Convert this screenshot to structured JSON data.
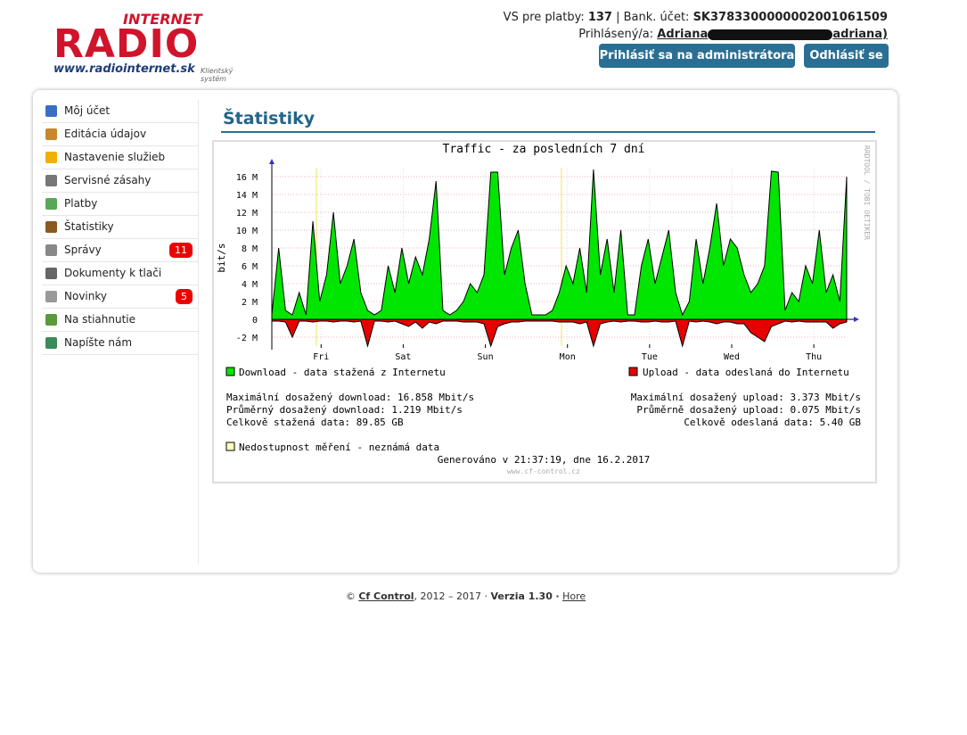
{
  "header": {
    "logo_top": "INTERNET",
    "logo_main": "RADIO",
    "logo_url": "www.radiointernet.sk",
    "logo_sub": "Klientský systém",
    "vs_label": "VS pre platby:",
    "vs": "137",
    "bank_label": "| Bank. účet:",
    "bank": "SK3783300000002001061509",
    "user_label": "Prihlásený/a:",
    "user_name": "Adriana",
    "user_tail": "adriana)",
    "buttons": [
      "Prihlásiť sa na administrátora",
      "Odhlásiť se"
    ]
  },
  "menu": [
    {
      "label": "Môj účet"
    },
    {
      "label": "Editácia údajov"
    },
    {
      "label": "Nastavenie služieb"
    },
    {
      "label": "Servisné zásahy"
    },
    {
      "label": "Platby"
    },
    {
      "label": "Štatistiky"
    },
    {
      "label": "Správy",
      "badge": "11"
    },
    {
      "label": "Dokumenty k tlači"
    },
    {
      "label": "Novinky",
      "badge": "5"
    },
    {
      "label": "Na stiahnutie"
    },
    {
      "label": "Napíšte nám"
    }
  ],
  "page_title": "Štatistiky",
  "chart_data": {
    "type": "area",
    "title": "Traffic - za posledních 7 dní",
    "y_label": "bit/s",
    "watermark": "RRDTOOL / TOBI OETIKER",
    "xlim": [
      0,
      168
    ],
    "ylim": [
      -3,
      17
    ],
    "xticks": [
      {
        "value": 14.4,
        "label": "Fri"
      },
      {
        "value": 38.4,
        "label": "Sat"
      },
      {
        "value": 62.4,
        "label": "Sun"
      },
      {
        "value": 86.4,
        "label": "Mon"
      },
      {
        "value": 110.4,
        "label": "Tue"
      },
      {
        "value": 134.4,
        "label": "Wed"
      },
      {
        "value": 158.4,
        "label": "Thu"
      }
    ],
    "yticks": [
      {
        "value": -2,
        "label": "-2 M"
      },
      {
        "value": 0,
        "label": "0"
      },
      {
        "value": 2,
        "label": "2 M"
      },
      {
        "value": 4,
        "label": "4 M"
      },
      {
        "value": 6,
        "label": "6 M"
      },
      {
        "value": 8,
        "label": "8 M"
      },
      {
        "value": 10,
        "label": "10 M"
      },
      {
        "value": 12,
        "label": "12 M"
      },
      {
        "value": 14,
        "label": "14 M"
      },
      {
        "value": 16,
        "label": "16 M"
      }
    ],
    "grid": true,
    "x": [
      0,
      2,
      4,
      6,
      8,
      10,
      12,
      14,
      16,
      18,
      20,
      22,
      24,
      26,
      28,
      30,
      32,
      34,
      36,
      38,
      40,
      42,
      44,
      46,
      48,
      50,
      52,
      54,
      56,
      58,
      60,
      62,
      64,
      66,
      68,
      70,
      72,
      74,
      76,
      78,
      80,
      82,
      84,
      86,
      88,
      90,
      92,
      94,
      96,
      98,
      100,
      102,
      104,
      106,
      108,
      110,
      112,
      114,
      116,
      118,
      120,
      122,
      124,
      126,
      128,
      130,
      132,
      134,
      136,
      138,
      140,
      142,
      144,
      146,
      148,
      150,
      152,
      154,
      156,
      158,
      160,
      162,
      164,
      166,
      168
    ],
    "series": [
      {
        "name": "Download - data stažená z Internetu",
        "color": "#00e600",
        "values": [
          0.5,
          8,
          1,
          0.5,
          3,
          0.5,
          11,
          2,
          5,
          12,
          4,
          6,
          9,
          3,
          1,
          0.5,
          1,
          6,
          3,
          8,
          4,
          7,
          5,
          9,
          15.5,
          1,
          0.5,
          1,
          2,
          4,
          3,
          5,
          16.5,
          16.5,
          5,
          8,
          10,
          4,
          0.5,
          0.5,
          0.5,
          1,
          3,
          6,
          4,
          8,
          3,
          16.8,
          5,
          9,
          3,
          10,
          0.5,
          0.5,
          6,
          9,
          4,
          7,
          10,
          3,
          0.5,
          2,
          9,
          4,
          8,
          13,
          6,
          9,
          8,
          5,
          3,
          4,
          6,
          16.6,
          16.5,
          1,
          3,
          2,
          6,
          4,
          10,
          3,
          5,
          2,
          16
        ]
      },
      {
        "name": "Upload - data odeslaná do Internetu",
        "color": "#e60000",
        "values": [
          -0.2,
          -0.2,
          -0.3,
          -2,
          -0.2,
          -0.2,
          -0.3,
          -0.2,
          -0.2,
          -0.3,
          -0.2,
          -0.2,
          -0.3,
          -0.2,
          -3,
          -0.2,
          -0.2,
          -0.3,
          -0.2,
          -0.5,
          -0.8,
          -0.3,
          -1,
          -0.3,
          -0.5,
          -0.2,
          -0.2,
          -0.2,
          -0.3,
          -0.3,
          -0.3,
          -0.5,
          -3,
          -0.8,
          -0.5,
          -0.3,
          -0.3,
          -0.2,
          -0.2,
          -0.2,
          -0.2,
          -0.2,
          -0.3,
          -0.3,
          -0.3,
          -0.5,
          -0.3,
          -3,
          -0.5,
          -0.3,
          -0.2,
          -0.3,
          -0.2,
          -0.2,
          -0.3,
          -0.3,
          -0.2,
          -0.3,
          -0.3,
          -0.2,
          -3,
          -0.2,
          -0.3,
          -0.2,
          -0.3,
          -0.5,
          -0.3,
          -0.3,
          -0.5,
          -0.5,
          -1.5,
          -2,
          -2.5,
          -0.8,
          -0.5,
          -0.2,
          -0.3,
          -0.2,
          -0.3,
          -0.3,
          -0.3,
          -0.3,
          -1,
          -0.5,
          -0.3
        ]
      }
    ],
    "stats_left": [
      "Maximální dosažený download: 16.858 Mbit/s",
      "Průměrný dosažený download: 1.219 Mbit/s",
      "Celkově stažená data: 89.85 GB"
    ],
    "stats_right": [
      "Maximální dosažený upload: 3.373 Mbit/s",
      "Průměrně dosažený upload: 0.075 Mbit/s",
      "Celkově odeslaná data: 5.40 GB"
    ],
    "unknown_legend": "Nedostupnost měření - neznámá data",
    "generated": "Generováno v 21:37:19, dne 16.2.2017",
    "source": "www.cf-control.cz"
  },
  "footer": {
    "copy": "©",
    "company": "Cf Control",
    "years": ", 2012 – 2017 ·",
    "version": "Verzia 1.30",
    "sep": "·",
    "top": "Hore"
  }
}
